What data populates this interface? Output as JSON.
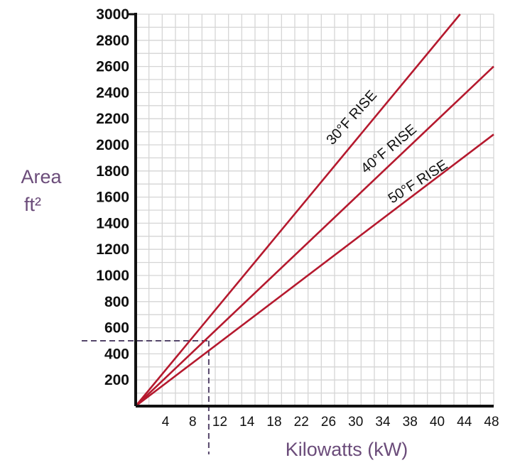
{
  "chart_data": {
    "type": "line",
    "xlabel": "Kilowatts (kW)",
    "ylabel_line1": "Area",
    "ylabel_line2": "ft²",
    "x_tick_labels": [
      "4",
      "8",
      "12",
      "14",
      "18",
      "22",
      "26",
      "30",
      "34",
      "38",
      "40",
      "44",
      "48"
    ],
    "y_tick_labels": [
      "200",
      "400",
      "600",
      "800",
      "1000",
      "1200",
      "1400",
      "1600",
      "1800",
      "2000",
      "2200",
      "2400",
      "2600",
      "2800",
      "3000"
    ],
    "ylim": [
      0,
      3000
    ],
    "grid": true,
    "series": [
      {
        "name": "30°F RISE",
        "x": [
          0,
          43.5
        ],
        "y": [
          0,
          3000
        ]
      },
      {
        "name": "40°F RISE",
        "x": [
          0,
          48
        ],
        "y": [
          0,
          2600
        ]
      },
      {
        "name": "50°F RISE",
        "x": [
          0,
          48
        ],
        "y": [
          0,
          2080
        ]
      }
    ],
    "reference": {
      "x": 9.8,
      "y": 500
    }
  },
  "colors": {
    "series": "#b5192e",
    "axis": "#111111",
    "grid": "#d5d5d5",
    "reference": "#55466a",
    "axis_title": "#6b4c7a"
  }
}
